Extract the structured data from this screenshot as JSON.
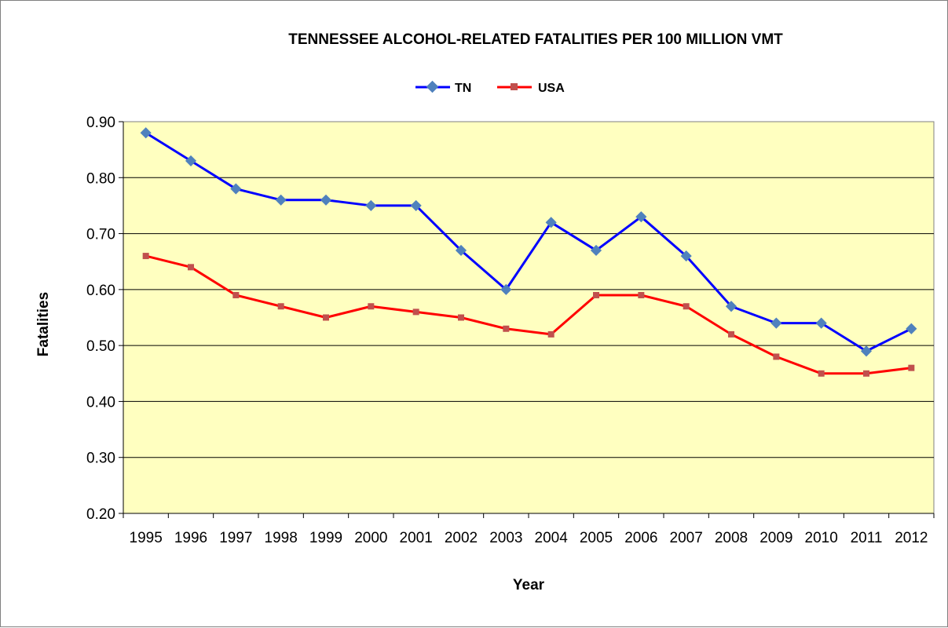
{
  "chart_data": {
    "type": "line",
    "title": "TENNESSEE ALCOHOL-RELATED FATALITIES PER 100 MILLION VMT",
    "xlabel": "Year",
    "ylabel": "Fatalities",
    "categories": [
      "1995",
      "1996",
      "1997",
      "1998",
      "1999",
      "2000",
      "2001",
      "2002",
      "2003",
      "2004",
      "2005",
      "2006",
      "2007",
      "2008",
      "2009",
      "2010",
      "2011",
      "2012"
    ],
    "series": [
      {
        "name": "TN",
        "color": "#0000ff",
        "marker": "diamond",
        "marker_color": "#4f81bd",
        "values": [
          0.88,
          0.83,
          0.78,
          0.76,
          0.76,
          0.75,
          0.75,
          0.67,
          0.6,
          0.72,
          0.67,
          0.73,
          0.66,
          0.57,
          0.54,
          0.54,
          0.49,
          0.53
        ]
      },
      {
        "name": "USA",
        "color": "#ff0000",
        "marker": "square",
        "marker_color": "#c0504d",
        "values": [
          0.66,
          0.64,
          0.59,
          0.57,
          0.55,
          0.57,
          0.56,
          0.55,
          0.53,
          0.52,
          0.59,
          0.59,
          0.57,
          0.52,
          0.48,
          0.45,
          0.45,
          0.46
        ]
      }
    ],
    "ylim": [
      0.2,
      0.9
    ],
    "yticks": [
      "0.20",
      "0.30",
      "0.40",
      "0.50",
      "0.60",
      "0.70",
      "0.80",
      "0.90"
    ],
    "grid": true,
    "legend_position": "top-center",
    "plot_background": "#ffffc0"
  }
}
